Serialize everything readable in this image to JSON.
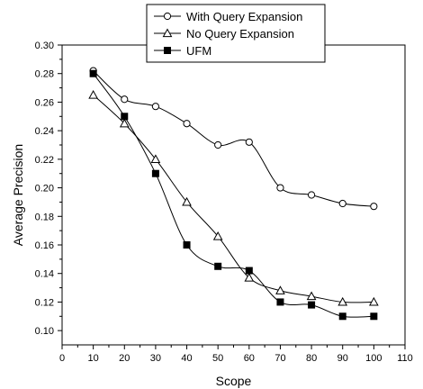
{
  "chart_data": {
    "type": "line",
    "xlabel": "Scope",
    "ylabel": "Average Precision",
    "xlim": [
      0,
      110
    ],
    "ylim": [
      0.09,
      0.3
    ],
    "x_ticks": [
      0,
      10,
      20,
      30,
      40,
      50,
      60,
      70,
      80,
      90,
      100,
      110
    ],
    "y_ticks": [
      0.1,
      0.12,
      0.14,
      0.16,
      0.18,
      0.2,
      0.22,
      0.24,
      0.26,
      0.28,
      0.3
    ],
    "x_tick_labels": [
      "0",
      "10",
      "20",
      "30",
      "40",
      "50",
      "60",
      "70",
      "80",
      "90",
      "100",
      "110"
    ],
    "y_tick_labels": [
      "0.10",
      "0.12",
      "0.14",
      "0.16",
      "0.18",
      "0.20",
      "0.22",
      "0.24",
      "0.26",
      "0.28",
      "0.30"
    ],
    "grid": false,
    "legend_position": "top",
    "x": [
      10,
      20,
      30,
      40,
      50,
      60,
      70,
      80,
      90,
      100
    ],
    "series": [
      {
        "name": "With Query Expansion",
        "marker": "circle-open",
        "values": [
          0.282,
          0.262,
          0.257,
          0.245,
          0.23,
          0.232,
          0.2,
          0.195,
          0.189,
          0.187
        ]
      },
      {
        "name": "No Query Expansion",
        "marker": "triangle-open",
        "values": [
          0.265,
          0.245,
          0.22,
          0.19,
          0.166,
          0.137,
          0.128,
          0.124,
          0.12,
          0.12
        ]
      },
      {
        "name": "UFM",
        "marker": "square-filled",
        "values": [
          0.28,
          0.25,
          0.21,
          0.16,
          0.145,
          0.142,
          0.12,
          0.118,
          0.11,
          0.11
        ]
      }
    ],
    "colors": {
      "line": "#000000",
      "background": "#ffffff"
    }
  }
}
